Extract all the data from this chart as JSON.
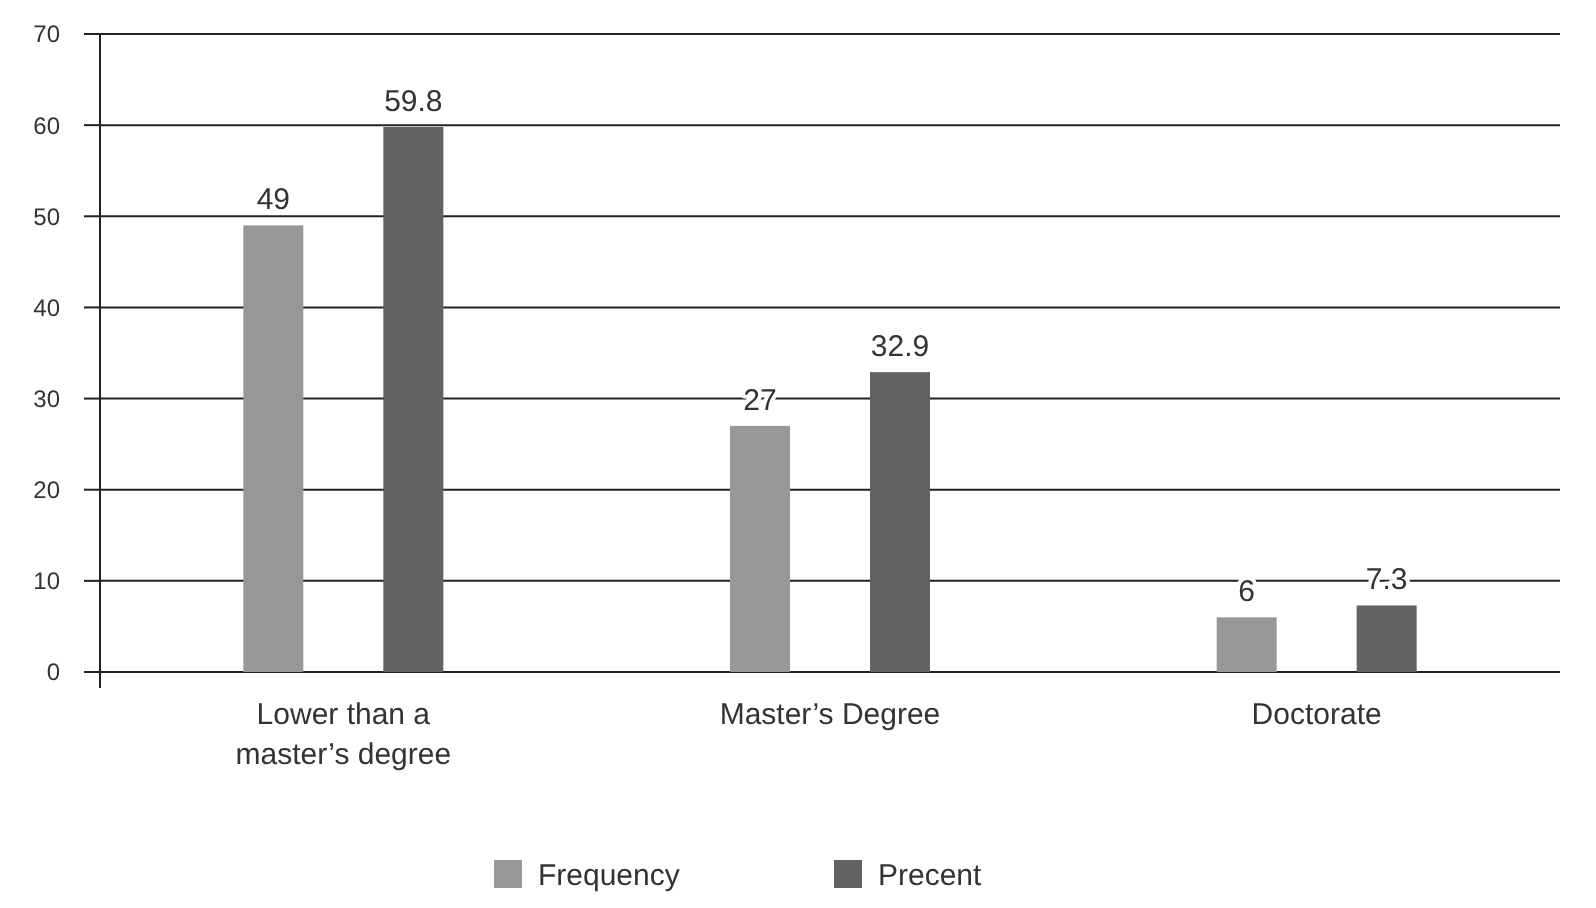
{
  "chart_data": {
    "type": "bar",
    "categories": [
      "Lower than a master’s degree",
      "Master’s Degree",
      "Doctorate"
    ],
    "series": [
      {
        "name": "Frequency",
        "color": "#989898",
        "values": [
          49,
          27,
          6
        ]
      },
      {
        "name": "Precent",
        "color": "#626262",
        "values": [
          59.8,
          32.9,
          7.3
        ]
      }
    ],
    "ylim": [
      0,
      70
    ],
    "yticks": [
      0,
      10,
      20,
      30,
      40,
      50,
      60,
      70
    ],
    "grid": "y",
    "legend": "bottom",
    "data_labels": true
  }
}
